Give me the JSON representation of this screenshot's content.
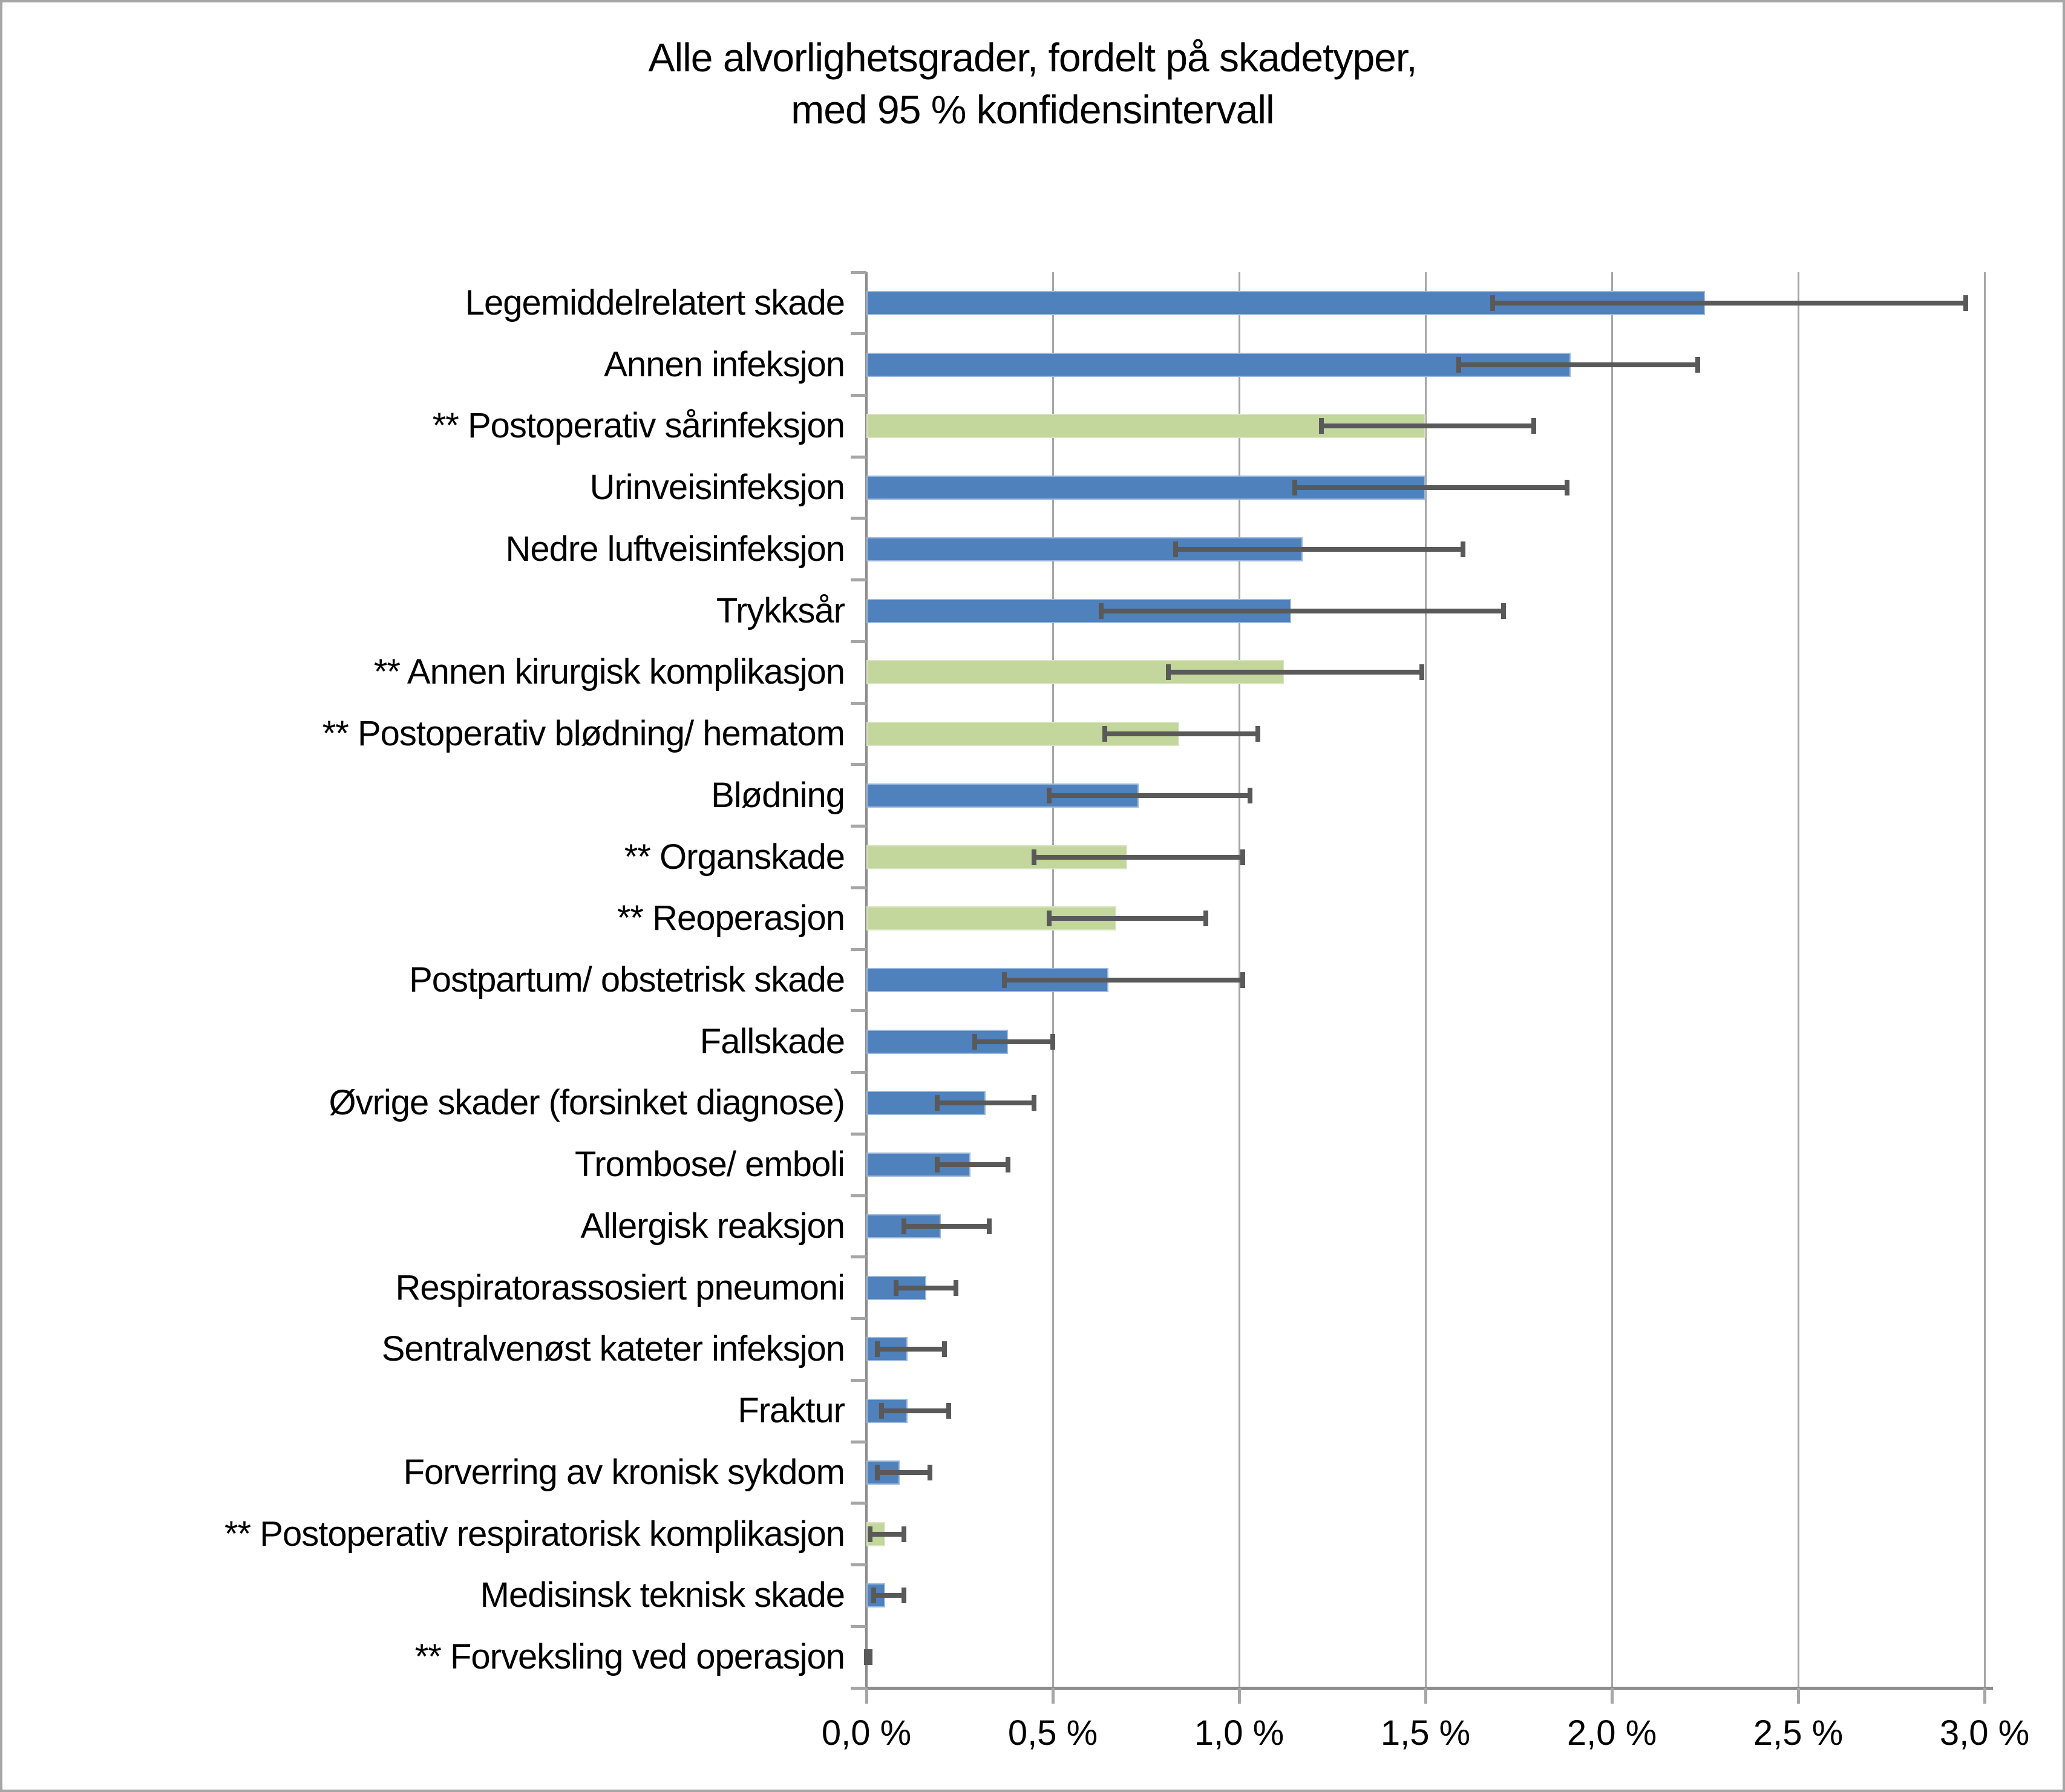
{
  "figure": {
    "title_line1": "Alle alvorlighetsgrader, fordelt på skadetyper,",
    "title_line2": "med 95 % konfidensintervall"
  },
  "chart_data": {
    "type": "bar",
    "orientation": "horizontal",
    "title": "Alle alvorlighetsgrader, fordelt på skadetyper, med 95 % konfidensintervall",
    "xlabel": "",
    "ylabel": "",
    "x_unit": "percent",
    "xlim": [
      0,
      3.0
    ],
    "x_tick_values": [
      0,
      0.5,
      1.0,
      1.5,
      2.0,
      2.5,
      3.0
    ],
    "x_tick_labels": [
      "0,0 %",
      "0,5 %",
      "1,0 %",
      "1,5 %",
      "2,0 %",
      "2,5 %",
      "3,0 %"
    ],
    "grid": true,
    "legend": "none",
    "error_bars": "95 % konfidensintervall",
    "notes": "Categories prefixed with ** are drawn with the green bar color",
    "colors": {
      "bar_default": "#4F81BD",
      "bar_starred": "#C3D69B",
      "error_bar": "#595959",
      "gridline": "#A6A6A6",
      "axis_line": "#8C8C8C",
      "text": "#000000"
    },
    "categories": [
      {
        "label": "Legemiddelrelatert skade",
        "value": 2.25,
        "ci_low": 1.68,
        "ci_high": 2.95,
        "color": "default"
      },
      {
        "label": "Annen infeksjon",
        "value": 1.89,
        "ci_low": 1.59,
        "ci_high": 2.23,
        "color": "default"
      },
      {
        "label": "** Postoperativ sårinfeksjon",
        "value": 1.5,
        "ci_low": 1.22,
        "ci_high": 1.79,
        "color": "starred"
      },
      {
        "label": "Urinveisinfeksjon",
        "value": 1.5,
        "ci_low": 1.15,
        "ci_high": 1.88,
        "color": "default"
      },
      {
        "label": "Nedre luftveisinfeksjon",
        "value": 1.17,
        "ci_low": 0.83,
        "ci_high": 1.6,
        "color": "default"
      },
      {
        "label": "Trykksår",
        "value": 1.14,
        "ci_low": 0.63,
        "ci_high": 1.71,
        "color": "default"
      },
      {
        "label": "** Annen kirurgisk komplikasjon",
        "value": 1.12,
        "ci_low": 0.81,
        "ci_high": 1.49,
        "color": "starred"
      },
      {
        "label": "** Postoperativ blødning/ hematom",
        "value": 0.84,
        "ci_low": 0.64,
        "ci_high": 1.05,
        "color": "starred"
      },
      {
        "label": "Blødning",
        "value": 0.73,
        "ci_low": 0.49,
        "ci_high": 1.03,
        "color": "default"
      },
      {
        "label": "** Organskade",
        "value": 0.7,
        "ci_low": 0.45,
        "ci_high": 1.01,
        "color": "starred"
      },
      {
        "label": "** Reoperasjon",
        "value": 0.67,
        "ci_low": 0.49,
        "ci_high": 0.91,
        "color": "starred"
      },
      {
        "label": "Postpartum/ obstetrisk skade",
        "value": 0.65,
        "ci_low": 0.37,
        "ci_high": 1.01,
        "color": "default"
      },
      {
        "label": "Fallskade",
        "value": 0.38,
        "ci_low": 0.29,
        "ci_high": 0.5,
        "color": "default"
      },
      {
        "label": "Øvrige skader (forsinket diagnose)",
        "value": 0.32,
        "ci_low": 0.19,
        "ci_high": 0.45,
        "color": "default"
      },
      {
        "label": "Trombose/ emboli",
        "value": 0.28,
        "ci_low": 0.19,
        "ci_high": 0.38,
        "color": "default"
      },
      {
        "label": "Allergisk reaksjon",
        "value": 0.2,
        "ci_low": 0.1,
        "ci_high": 0.33,
        "color": "default"
      },
      {
        "label": "Respiratorassosiert pneumoni",
        "value": 0.16,
        "ci_low": 0.08,
        "ci_high": 0.24,
        "color": "default"
      },
      {
        "label": "Sentralvenøst kateter infeksjon",
        "value": 0.11,
        "ci_low": 0.03,
        "ci_high": 0.21,
        "color": "default"
      },
      {
        "label": "Fraktur",
        "value": 0.11,
        "ci_low": 0.04,
        "ci_high": 0.22,
        "color": "default"
      },
      {
        "label": "Forverring av kronisk sykdom",
        "value": 0.09,
        "ci_low": 0.03,
        "ci_high": 0.17,
        "color": "default"
      },
      {
        "label": "** Postoperativ respiratorisk komplikasjon",
        "value": 0.05,
        "ci_low": 0.01,
        "ci_high": 0.1,
        "color": "starred"
      },
      {
        "label": "Medisinsk teknisk skade",
        "value": 0.05,
        "ci_low": 0.02,
        "ci_high": 0.1,
        "color": "default"
      },
      {
        "label": "** Forveksling ved operasjon",
        "value": 0.0,
        "ci_low": 0.0,
        "ci_high": 0.01,
        "color": "starred"
      }
    ]
  }
}
